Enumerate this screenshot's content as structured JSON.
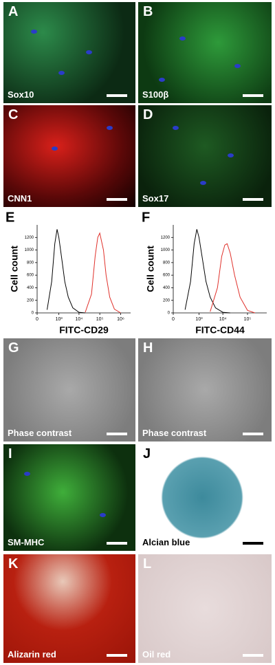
{
  "panels": [
    {
      "letter": "A",
      "label": "Sox10"
    },
    {
      "letter": "B",
      "label": "S100β"
    },
    {
      "letter": "C",
      "label": "CNN1"
    },
    {
      "letter": "D",
      "label": "Sox17"
    },
    {
      "letter": "G",
      "label": "Phase contrast"
    },
    {
      "letter": "H",
      "label": "Phase contrast"
    },
    {
      "letter": "I",
      "label": "SM-MHC"
    },
    {
      "letter": "J",
      "label": "Alcian blue"
    },
    {
      "letter": "K",
      "label": "Alizarin red"
    },
    {
      "letter": "L",
      "label": "Oil red"
    }
  ],
  "chart_data": [
    {
      "type": "line",
      "panel": "E",
      "xlabel": "FITC-CD29",
      "ylabel": "Cell count",
      "xscale": "symlog",
      "linthresh": 100,
      "xlim": [
        0,
        3000000
      ],
      "ylim": [
        0,
        1400
      ],
      "xticks": [
        0,
        {
          "value": 1000,
          "label": "10³"
        },
        {
          "value": 10000,
          "label": "10⁴"
        },
        {
          "value": 100000,
          "label": "10⁵"
        },
        {
          "value": 1000000,
          "label": "10⁶"
        }
      ],
      "yticks": [
        0,
        200,
        400,
        600,
        800,
        1000,
        1200
      ],
      "series": [
        {
          "color": "#000000",
          "x": [
            200,
            400,
            600,
            800,
            1000,
            1500,
            2000,
            3000,
            5000,
            10000,
            20000
          ],
          "values": [
            50,
            500,
            1100,
            1330,
            1200,
            800,
            500,
            250,
            80,
            10,
            0
          ]
        },
        {
          "color": "#e0302a",
          "x": [
            20000,
            40000,
            60000,
            80000,
            100000,
            150000,
            200000,
            300000,
            500000,
            1000000
          ],
          "values": [
            10,
            300,
            900,
            1200,
            1270,
            1000,
            600,
            250,
            60,
            0
          ]
        }
      ]
    },
    {
      "type": "line",
      "panel": "F",
      "xlabel": "FITC-CD44",
      "ylabel": "Cell count",
      "xscale": "symlog",
      "linthresh": 100,
      "xlim": [
        0,
        600000
      ],
      "ylim": [
        0,
        1400
      ],
      "xticks": [
        0,
        {
          "value": 1000,
          "label": "10³"
        },
        {
          "value": 10000,
          "label": "10⁴"
        },
        {
          "value": 100000,
          "label": "10⁵"
        }
      ],
      "yticks": [
        0,
        200,
        400,
        600,
        800,
        1000,
        1200
      ],
      "series": [
        {
          "color": "#000000",
          "x": [
            200,
            400,
            600,
            800,
            1000,
            1500,
            2000,
            3000,
            5000,
            10000,
            20000
          ],
          "values": [
            50,
            500,
            1100,
            1330,
            1200,
            800,
            500,
            250,
            80,
            10,
            0
          ]
        },
        {
          "color": "#e0302a",
          "x": [
            3000,
            6000,
            9000,
            12000,
            15000,
            20000,
            30000,
            50000,
            100000,
            200000
          ],
          "values": [
            20,
            400,
            900,
            1080,
            1100,
            950,
            600,
            250,
            40,
            0
          ]
        }
      ]
    }
  ]
}
